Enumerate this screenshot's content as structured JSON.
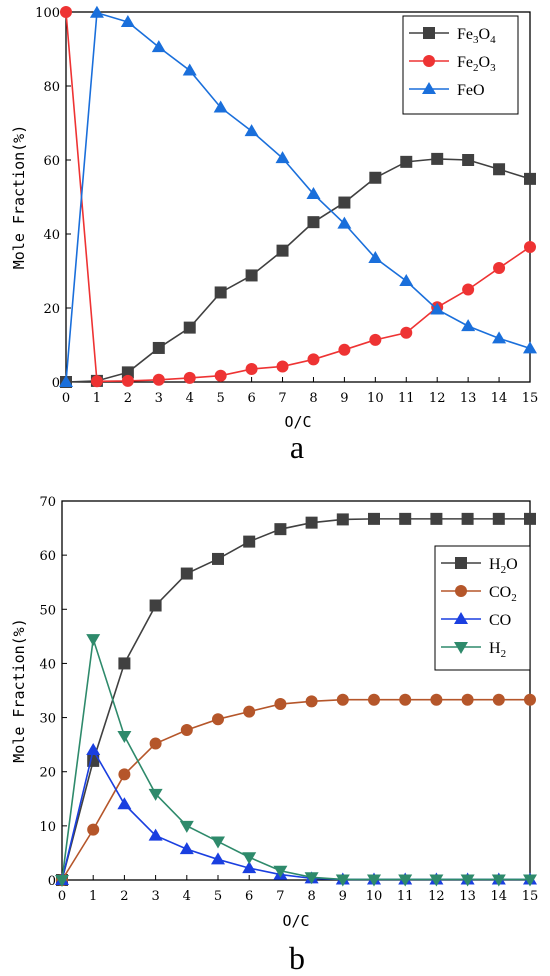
{
  "chart_data": [
    {
      "type": "line",
      "panel_label": "a",
      "xlabel": "O/C",
      "ylabel": "Mole Fraction(%)",
      "xlim": [
        0,
        15
      ],
      "ylim": [
        0,
        100
      ],
      "xticks": [
        0,
        1,
        2,
        3,
        4,
        5,
        6,
        7,
        8,
        9,
        10,
        11,
        12,
        13,
        14,
        15
      ],
      "yticks": [
        0,
        20,
        40,
        60,
        80,
        100
      ],
      "legend_position": "top-right",
      "series": [
        {
          "name": "Fe3O4",
          "label_main": [
            "Fe",
            "3",
            "O",
            "4"
          ],
          "color": "#404040",
          "marker": "square",
          "x": [
            0,
            1,
            2,
            3,
            4,
            5,
            6,
            7,
            8,
            9,
            10,
            11,
            12,
            13,
            14,
            15
          ],
          "y": [
            0,
            0.3,
            2.6,
            9.2,
            14.7,
            24.2,
            28.8,
            35.5,
            43.2,
            48.5,
            55.2,
            59.5,
            60.3,
            60,
            57.5,
            54.9
          ]
        },
        {
          "name": "Fe2O3",
          "label_main": [
            "Fe",
            "2",
            "O",
            "3"
          ],
          "color": "#ee3333",
          "marker": "circle",
          "x": [
            0,
            1,
            2,
            3,
            4,
            5,
            6,
            7,
            8,
            9,
            10,
            11,
            12,
            13,
            14,
            15
          ],
          "y": [
            100,
            0.2,
            0.3,
            0.6,
            1.1,
            1.7,
            3.5,
            4.2,
            6.1,
            8.7,
            11.4,
            13.3,
            20.2,
            25,
            30.8,
            36.5
          ]
        },
        {
          "name": "FeO",
          "label_main": [
            "FeO"
          ],
          "color": "#1a6fdb",
          "marker": "triangle-up",
          "x": [
            0,
            1,
            2,
            3,
            4,
            5,
            6,
            7,
            8,
            9,
            10,
            11,
            12,
            13,
            14,
            15
          ],
          "y": [
            0,
            99.8,
            97.3,
            90.5,
            84.2,
            74.2,
            67.8,
            60.5,
            50.8,
            42.8,
            33.5,
            27.3,
            19.6,
            15.1,
            11.8,
            9.1
          ]
        }
      ]
    },
    {
      "type": "line",
      "panel_label": "b",
      "xlabel": "O/C",
      "ylabel": "Mole Fraction(%)",
      "xlim": [
        0,
        15
      ],
      "ylim": [
        0,
        70
      ],
      "xticks": [
        0,
        1,
        2,
        3,
        4,
        5,
        6,
        7,
        8,
        9,
        10,
        11,
        12,
        13,
        14,
        15
      ],
      "yticks": [
        0,
        10,
        20,
        30,
        40,
        50,
        60,
        70
      ],
      "legend_position": "right",
      "series": [
        {
          "name": "H2O",
          "label_main": [
            "H",
            "2",
            "O"
          ],
          "color": "#404040",
          "marker": "square",
          "x": [
            0,
            1,
            2,
            3,
            4,
            5,
            6,
            7,
            8,
            9,
            10,
            11,
            12,
            13,
            14,
            15
          ],
          "y": [
            0,
            22,
            40,
            50.7,
            56.6,
            59.3,
            62.5,
            64.8,
            66,
            66.6,
            66.7,
            66.7,
            66.7,
            66.7,
            66.7,
            66.7
          ]
        },
        {
          "name": "CO2",
          "label_main": [
            "CO",
            "2"
          ],
          "color": "#b5562a",
          "marker": "circle",
          "x": [
            0,
            1,
            2,
            3,
            4,
            5,
            6,
            7,
            8,
            9,
            10,
            11,
            12,
            13,
            14,
            15
          ],
          "y": [
            0,
            9.3,
            19.5,
            25.2,
            27.7,
            29.7,
            31.1,
            32.5,
            33,
            33.3,
            33.3,
            33.3,
            33.3,
            33.3,
            33.3,
            33.3
          ]
        },
        {
          "name": "CO",
          "label_main": [
            "CO"
          ],
          "color": "#1a3fe0",
          "marker": "triangle-up",
          "x": [
            0,
            1,
            2,
            3,
            4,
            5,
            6,
            7,
            8,
            9,
            10,
            11,
            12,
            13,
            14,
            15
          ],
          "y": [
            0,
            24,
            14,
            8.2,
            5.7,
            3.8,
            2.2,
            1,
            0.3,
            0.1,
            0.1,
            0.1,
            0.1,
            0.1,
            0.1,
            0.1
          ]
        },
        {
          "name": "H2",
          "label_main": [
            "H",
            "2"
          ],
          "color": "#2e8a6b",
          "marker": "triangle-down",
          "x": [
            0,
            1,
            2,
            3,
            4,
            5,
            6,
            7,
            8,
            9,
            10,
            11,
            12,
            13,
            14,
            15
          ],
          "y": [
            0,
            44.5,
            26.6,
            15.9,
            10,
            7.1,
            4.2,
            1.7,
            0.5,
            0.1,
            0.1,
            0.1,
            0.1,
            0.1,
            0.1,
            0.1
          ]
        }
      ]
    }
  ]
}
